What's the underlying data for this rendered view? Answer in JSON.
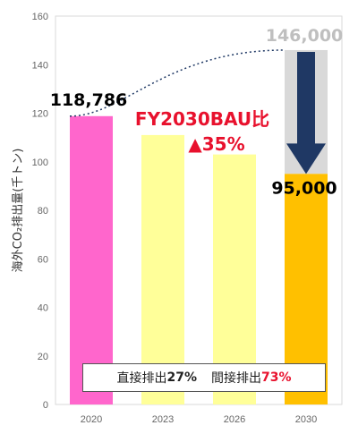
{
  "chart_data": {
    "type": "bar",
    "categories": [
      "2020",
      "2023",
      "2026",
      "2030"
    ],
    "series": [
      {
        "values": [
          118.786,
          111,
          103,
          95
        ]
      }
    ],
    "bau_value": 146,
    "bar_colors": [
      "#ff66cc",
      "#ffff99",
      "#ffff99",
      "#ffc000"
    ],
    "bau_color": "#d9d9d9",
    "arrow_color": "#1f3864",
    "accent_red": "#e8112d",
    "ylabel": "海外CO₂排出量(千トン)",
    "ylim": [
      0,
      160
    ],
    "yticks": [
      "0",
      "20",
      "40",
      "60",
      "80",
      "100",
      "120",
      "140",
      "160"
    ],
    "grid": false,
    "annotations": {
      "value_2020": "118,786",
      "bau_label": "146,000",
      "value_2030": "95,000",
      "target_line1": "FY2030BAU比",
      "target_line2": "▲35%"
    },
    "note": {
      "direct_label": "直接排出",
      "direct_pct": "27%",
      "indirect_label": "間接排出",
      "indirect_pct": "73%"
    }
  }
}
